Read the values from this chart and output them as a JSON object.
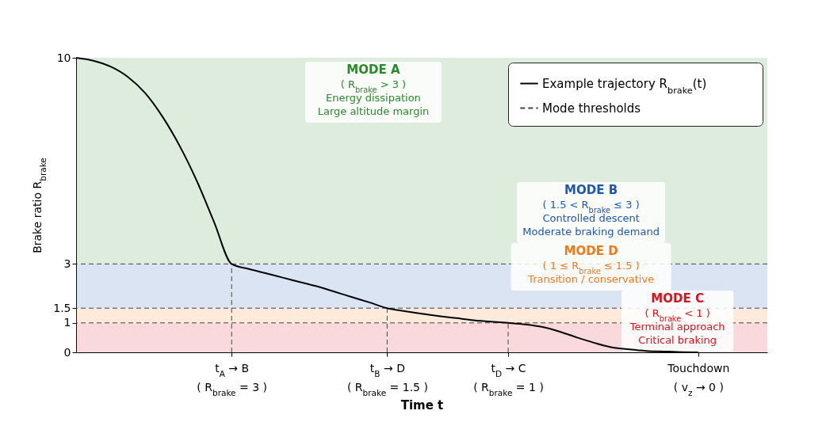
{
  "chart_data": {
    "type": "line",
    "xlabel": "Time t",
    "ylabel": "Brake ratio R$_{brake}$",
    "categories": [
      null,
      null,
      null,
      null,
      null,
      null,
      null,
      null,
      null,
      "t$_{A}$ → B\n( R$_{brake}$ = 3 )",
      null,
      null,
      null,
      null,
      null,
      null,
      null,
      null,
      "t$_{B}$ → D\n( R$_{brake}$ = 1.5 )",
      null,
      null,
      null,
      null,
      null,
      null,
      "t$_{D}$ → C\n( R$_{brake}$ = 1 )",
      null,
      null,
      null,
      null,
      null,
      null,
      null,
      null,
      null,
      null,
      "Touchdown\n( v$_{z}$ → 0 )",
      null,
      null,
      null,
      null
    ],
    "ylim": [
      0,
      10
    ],
    "yticks": [
      0,
      1,
      1.5,
      3,
      10
    ],
    "series": [
      {
        "name": "Example trajectory R$_{brake}$(t)",
        "color": "#000000",
        "line_style": "solid",
        "values": [
          10,
          9.9,
          9.7,
          9.35,
          8.8,
          8.0,
          7.0,
          5.8,
          4.4,
          3.0,
          2.83,
          2.68,
          2.53,
          2.38,
          2.23,
          2.05,
          1.87,
          1.69,
          1.5,
          1.4,
          1.31,
          1.23,
          1.16,
          1.09,
          1.04,
          1.0,
          0.95,
          0.86,
          0.7,
          0.5,
          0.32,
          0.17,
          0.1,
          0.05,
          0.03,
          0.01,
          0,
          null,
          null,
          null,
          null
        ]
      }
    ],
    "ref_lines": [
      {
        "axis": "y",
        "value": 3,
        "color": "#444444",
        "line_style": "dashed",
        "label": "Mode thresholds"
      },
      {
        "axis": "y",
        "value": 1.5,
        "color": "#444444",
        "line_style": "dashed"
      },
      {
        "axis": "y",
        "value": 1,
        "color": "#444444",
        "line_style": "dashed"
      },
      {
        "axis": "x",
        "value": "t$_{A}$ → B\n( R$_{brake}$ = 3 )",
        "color": "#444444",
        "line_style": "dashed"
      },
      {
        "axis": "x",
        "value": "t$_{B}$ → D\n( R$_{brake}$ = 1.5 )",
        "color": "#444444",
        "line_style": "dashed"
      },
      {
        "axis": "x",
        "value": "t$_{D}$ → C\n( R$_{brake}$ = 1 )",
        "color": "#444444",
        "line_style": "dashed"
      }
    ],
    "bands": [
      {
        "axis": "y",
        "from": 3,
        "to": 10,
        "color": "#2a8a2a",
        "label": "MODE A\n( R$_{brake}$ > 3 )\nEnergy dissipation\nLarge altitude margin"
      },
      {
        "axis": "y",
        "from": 1.5,
        "to": 3,
        "color": "#1f56b0",
        "label": "MODE B\n( 1.5 < R$_{brake}$ ≤ 3 )\nControlled descent\nModerate braking demand"
      },
      {
        "axis": "y",
        "from": 1,
        "to": 1.5,
        "color": "#f07a1a",
        "label": "MODE D\n( 1 ≤ R$_{brake}$ ≤ 1.5 )\nTransition / conservative"
      },
      {
        "axis": "y",
        "from": 0,
        "to": 1,
        "color": "#d8141c",
        "label": "MODE C\n( R$_{brake}$ < 1 )\nTerminal approach\nCritical braking"
      }
    ],
    "grid": false,
    "legend": "top right"
  }
}
